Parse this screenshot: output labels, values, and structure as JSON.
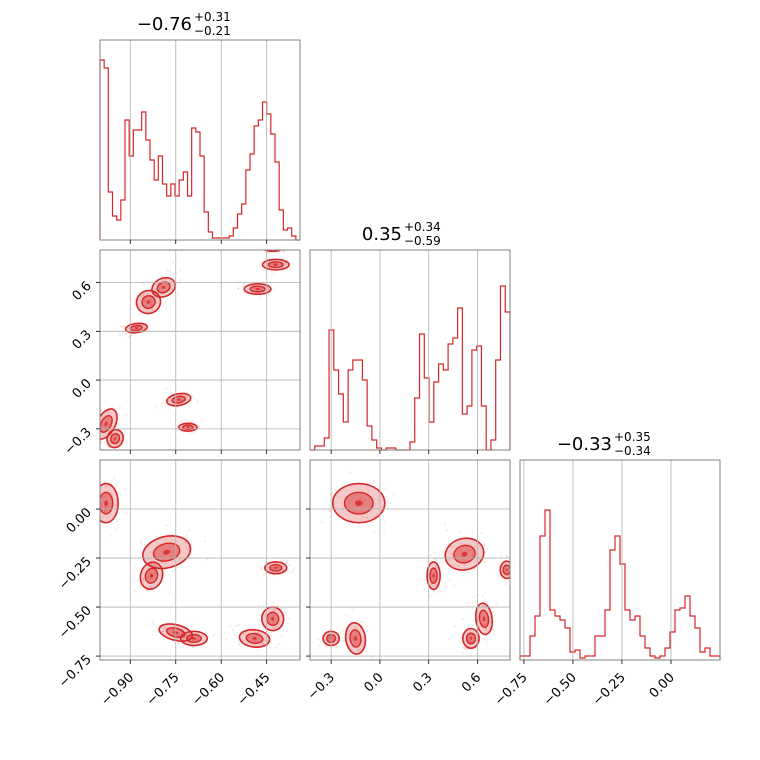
{
  "chart_data": {
    "type": "corner",
    "color": "#d62728",
    "grid": true,
    "parameters": [
      {
        "range": [
          -1.0,
          -0.34
        ],
        "title": {
          "main": "−0.76",
          "sup": "+0.31",
          "sub": "−0.21"
        },
        "ticks": [
          -0.9,
          -0.75,
          -0.6,
          -0.45
        ],
        "tick_labels": [
          "−0.90",
          "−0.75",
          "−0.60",
          "−0.45"
        ],
        "hist": [
          0.9,
          0.86,
          0.24,
          0.12,
          0.1,
          0.2,
          0.6,
          0.42,
          0.55,
          0.55,
          0.64,
          0.5,
          0.4,
          0.3,
          0.42,
          0.28,
          0.22,
          0.28,
          0.22,
          0.3,
          0.34,
          0.22,
          0.56,
          0.54,
          0.42,
          0.14,
          0.04,
          0.01,
          0.01,
          0.01,
          0.01,
          0.02,
          0.06,
          0.13,
          0.18,
          0.35,
          0.43,
          0.57,
          0.6,
          0.69,
          0.63,
          0.53,
          0.39,
          0.15,
          0.05,
          0.06,
          0.02,
          0.0
        ]
      },
      {
        "range": [
          -0.43,
          0.8
        ],
        "title": {
          "main": "0.35",
          "sup": "+0.34",
          "sub": "−0.59"
        },
        "ticks": [
          -0.3,
          0.0,
          0.3,
          0.6
        ],
        "tick_labels": [
          "−0.3",
          "0.0",
          "0.3",
          "0.6"
        ],
        "hist": [
          0.0,
          0.02,
          0.02,
          0.06,
          0.6,
          0.4,
          0.28,
          0.14,
          0.4,
          0.45,
          0.45,
          0.35,
          0.12,
          0.05,
          0.01,
          0.0,
          0.01,
          0.01,
          0.0,
          0.0,
          0.0,
          0.04,
          0.26,
          0.58,
          0.36,
          0.14,
          0.34,
          0.43,
          0.4,
          0.53,
          0.56,
          0.71,
          0.18,
          0.22,
          0.5,
          0.52,
          0.22,
          0.0,
          0.05,
          0.45,
          0.82,
          0.69
        ]
      },
      {
        "range": [
          -0.77,
          0.25
        ],
        "title": {
          "main": "−0.33",
          "sup": "+0.35",
          "sub": "−0.34"
        },
        "ticks": [
          -0.75,
          -0.5,
          -0.25,
          0.0
        ],
        "tick_labels": [
          "−0.75",
          "−0.50",
          "−0.25",
          "0.00"
        ],
        "hist": [
          0.02,
          0.02,
          0.12,
          0.22,
          0.62,
          0.75,
          0.25,
          0.22,
          0.2,
          0.16,
          0.04,
          0.05,
          0.01,
          0.02,
          0.02,
          0.12,
          0.12,
          0.25,
          0.55,
          0.62,
          0.48,
          0.25,
          0.2,
          0.22,
          0.12,
          0.06,
          0.02,
          0.01,
          0.02,
          0.06,
          0.14,
          0.25,
          0.26,
          0.32,
          0.22,
          0.16,
          0.04,
          0.06,
          0.02,
          0.02
        ]
      }
    ],
    "pairs": [
      {
        "x": 0,
        "y": 1,
        "blobs": [
          {
            "cx": -0.98,
            "cy": -0.27,
            "sx": 0.015,
            "sy": 0.05,
            "rot": -0.8
          },
          {
            "cx": -0.95,
            "cy": -0.36,
            "sx": 0.013,
            "sy": 0.028,
            "rot": -0.6
          },
          {
            "cx": -0.88,
            "cy": 0.32,
            "sx": 0.018,
            "sy": 0.014,
            "rot": 0.2
          },
          {
            "cx": -0.84,
            "cy": 0.48,
            "sx": 0.02,
            "sy": 0.035,
            "rot": 0.7
          },
          {
            "cx": -0.79,
            "cy": 0.57,
            "sx": 0.02,
            "sy": 0.028,
            "rot": 0.7
          },
          {
            "cx": -0.74,
            "cy": -0.12,
            "sx": 0.02,
            "sy": 0.018,
            "rot": 0.3
          },
          {
            "cx": -0.71,
            "cy": -0.29,
            "sx": 0.015,
            "sy": 0.012,
            "rot": 0.0
          },
          {
            "cx": -0.48,
            "cy": 0.56,
            "sx": 0.022,
            "sy": 0.016,
            "rot": 0.0
          },
          {
            "cx": -0.42,
            "cy": 0.71,
            "sx": 0.022,
            "sy": 0.016,
            "rot": 0.0
          },
          {
            "cx": -0.43,
            "cy": 0.82,
            "sx": 0.018,
            "sy": 0.014,
            "rot": 0.0
          }
        ]
      },
      {
        "x": 0,
        "y": 2,
        "blobs": [
          {
            "cx": -0.98,
            "cy": 0.03,
            "sx": 0.02,
            "sy": 0.05,
            "rot": 0.0
          },
          {
            "cx": -0.83,
            "cy": -0.34,
            "sx": 0.018,
            "sy": 0.035,
            "rot": -0.5
          },
          {
            "cx": -0.78,
            "cy": -0.22,
            "sx": 0.04,
            "sy": 0.04,
            "rot": 0.4
          },
          {
            "cx": -0.75,
            "cy": -0.63,
            "sx": 0.028,
            "sy": 0.02,
            "rot": -0.4
          },
          {
            "cx": -0.69,
            "cy": -0.66,
            "sx": 0.022,
            "sy": 0.018,
            "rot": 0.0
          },
          {
            "cx": -0.49,
            "cy": -0.66,
            "sx": 0.025,
            "sy": 0.022,
            "rot": -0.2
          },
          {
            "cx": -0.43,
            "cy": -0.56,
            "sx": 0.018,
            "sy": 0.03,
            "rot": 0.2
          },
          {
            "cx": -0.42,
            "cy": -0.3,
            "sx": 0.018,
            "sy": 0.015,
            "rot": 0.0
          }
        ]
      },
      {
        "x": 1,
        "y": 2,
        "blobs": [
          {
            "cx": -0.13,
            "cy": 0.03,
            "sx": 0.08,
            "sy": 0.05,
            "rot": 0.0
          },
          {
            "cx": -0.3,
            "cy": -0.66,
            "sx": 0.025,
            "sy": 0.018,
            "rot": 0.0
          },
          {
            "cx": -0.15,
            "cy": -0.66,
            "sx": 0.03,
            "sy": 0.04,
            "rot": 0.2
          },
          {
            "cx": 0.33,
            "cy": -0.34,
            "sx": 0.02,
            "sy": 0.035,
            "rot": 0.0
          },
          {
            "cx": 0.52,
            "cy": -0.23,
            "sx": 0.06,
            "sy": 0.04,
            "rot": 0.4
          },
          {
            "cx": 0.56,
            "cy": -0.66,
            "sx": 0.025,
            "sy": 0.025,
            "rot": 0.0
          },
          {
            "cx": 0.64,
            "cy": -0.56,
            "sx": 0.025,
            "sy": 0.04,
            "rot": 0.2
          },
          {
            "cx": 0.78,
            "cy": -0.31,
            "sx": 0.02,
            "sy": 0.022,
            "rot": 0.0
          }
        ]
      }
    ]
  }
}
